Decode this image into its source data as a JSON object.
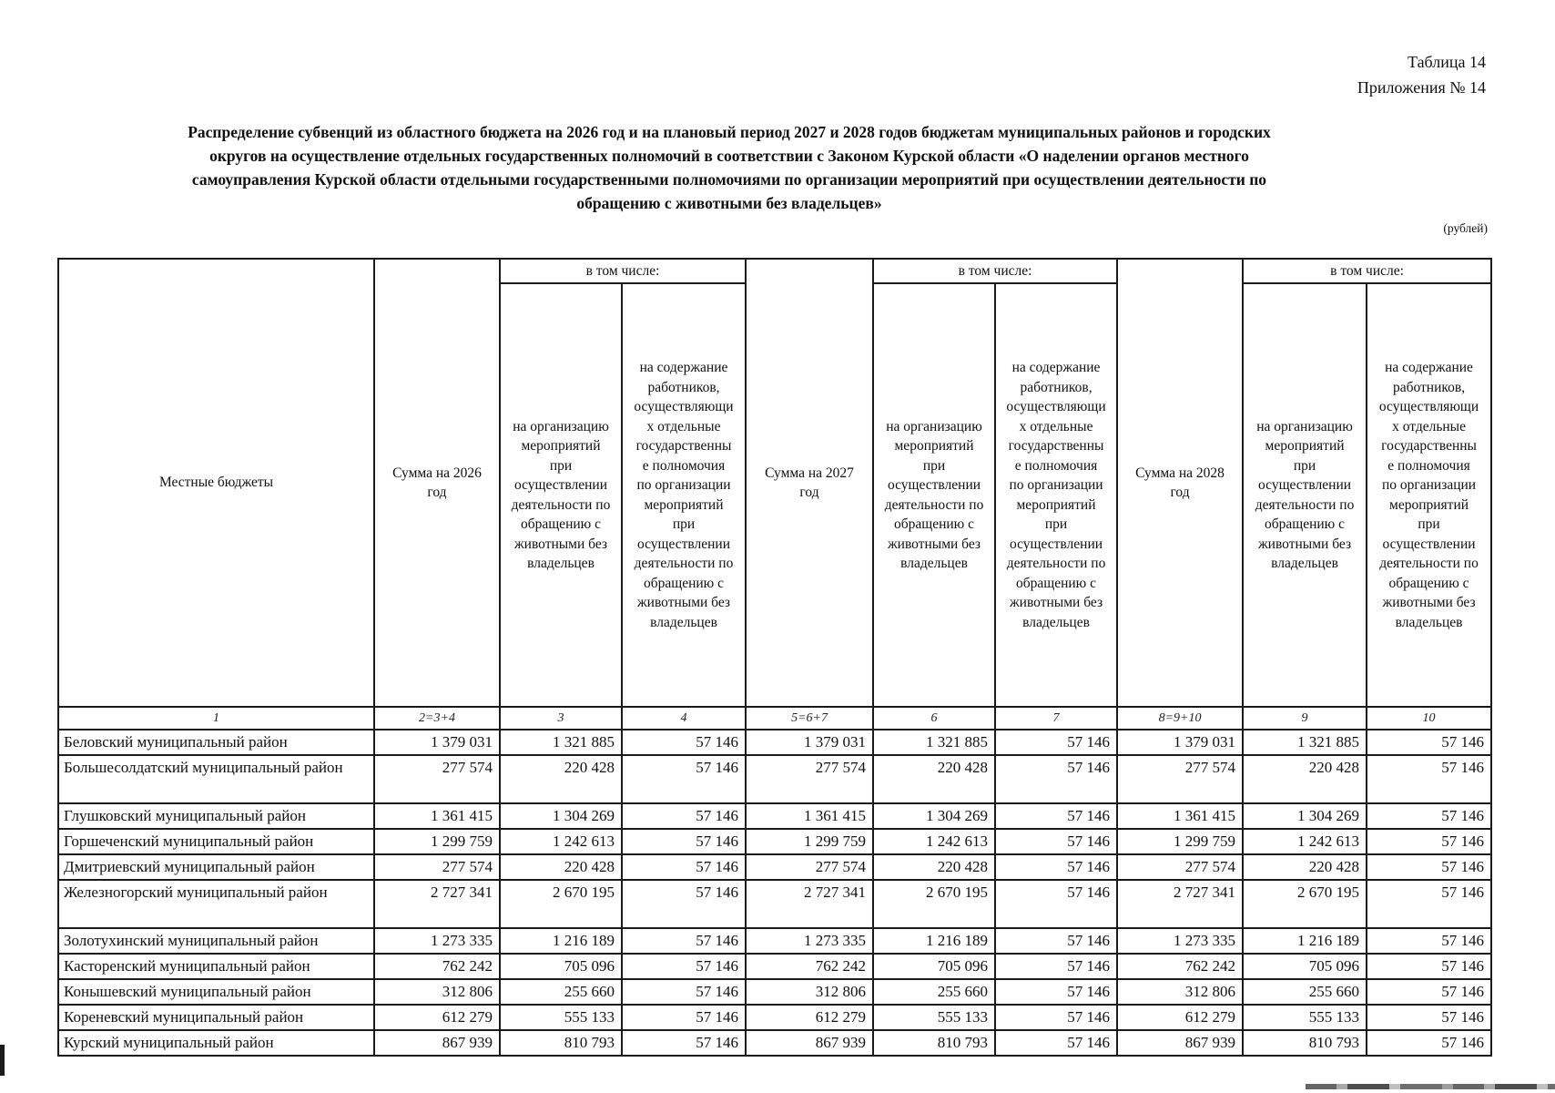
{
  "page": {
    "corner_line1": "Таблица 14",
    "corner_line2": "Приложения № 14",
    "title": "Распределение субвенций из областного бюджета на 2026 год и на плановый период 2027 и 2028 годов бюджетам муниципальных районов и городских\nокругов на осуществление отдельных государственных полномочий в соответствии с Законом Курской области «О наделении органов местного\nсамоуправления Курской области отдельными государственными полномочиями по организации мероприятий при осуществлении деятельности по\nобращению с животными без владельцев»",
    "currency_note": "(рублей)"
  },
  "table": {
    "header": {
      "local_budgets": "Местные бюджеты",
      "sum_2026": "Сумма на 2026\nгод",
      "sum_2027": "Сумма на 2027\nгод",
      "sum_2028": "Сумма на 2028\nгод",
      "including": "в том числе:",
      "org_events": "на организацию\nмероприятий\nпри\nосуществлении\nдеятельности по\nобращению с\nживотными без\nвладельцев",
      "workers": "на содержание\nработников,\nосуществляющи\nх отдельные\nгосударственны\nе полномочия\nпо организации\nмероприятий\nпри\nосуществлении\nдеятельности по\nобращению с\nживотными без\nвладельцев"
    },
    "col_numbers": [
      "1",
      "2=3+4",
      "3",
      "4",
      "5=6+7",
      "6",
      "7",
      "8=9+10",
      "9",
      "10"
    ],
    "rows": [
      {
        "name": "Беловский муниципальный район",
        "tall": false,
        "cells": [
          "1 379 031",
          "1 321 885",
          "57 146",
          "1 379 031",
          "1 321 885",
          "57 146",
          "1 379 031",
          "1 321 885",
          "57 146"
        ]
      },
      {
        "name": "Большесолдатский муниципальный район",
        "tall": true,
        "cells": [
          "277 574",
          "220 428",
          "57 146",
          "277 574",
          "220 428",
          "57 146",
          "277 574",
          "220 428",
          "57 146"
        ]
      },
      {
        "name": "Глушковский муниципальный район",
        "tall": false,
        "cells": [
          "1 361 415",
          "1 304 269",
          "57 146",
          "1 361 415",
          "1 304 269",
          "57 146",
          "1 361 415",
          "1 304 269",
          "57 146"
        ]
      },
      {
        "name": "Горшеченский муниципальный район",
        "tall": false,
        "cells": [
          "1 299 759",
          "1 242 613",
          "57 146",
          "1 299 759",
          "1 242 613",
          "57 146",
          "1 299 759",
          "1 242 613",
          "57 146"
        ]
      },
      {
        "name": "Дмитриевский муниципальный район",
        "tall": false,
        "cells": [
          "277 574",
          "220 428",
          "57 146",
          "277 574",
          "220 428",
          "57 146",
          "277 574",
          "220 428",
          "57 146"
        ]
      },
      {
        "name": "Железногорский муниципальный район",
        "tall": true,
        "cells": [
          "2 727 341",
          "2 670 195",
          "57 146",
          "2 727 341",
          "2 670 195",
          "57 146",
          "2 727 341",
          "2 670 195",
          "57 146"
        ]
      },
      {
        "name": "Золотухинский муниципальный район",
        "tall": false,
        "cells": [
          "1 273 335",
          "1 216 189",
          "57 146",
          "1 273 335",
          "1 216 189",
          "57 146",
          "1 273 335",
          "1 216 189",
          "57 146"
        ]
      },
      {
        "name": "Касторенский муниципальный район",
        "tall": false,
        "cells": [
          "762 242",
          "705 096",
          "57 146",
          "762 242",
          "705 096",
          "57 146",
          "762 242",
          "705 096",
          "57 146"
        ]
      },
      {
        "name": "Конышевский муниципальный район",
        "tall": false,
        "cells": [
          "312 806",
          "255 660",
          "57 146",
          "312 806",
          "255 660",
          "57 146",
          "312 806",
          "255 660",
          "57 146"
        ]
      },
      {
        "name": "Кореневский муниципальный район",
        "tall": false,
        "cells": [
          "612 279",
          "555 133",
          "57 146",
          "612 279",
          "555 133",
          "57 146",
          "612 279",
          "555 133",
          "57 146"
        ]
      },
      {
        "name": "Курский муниципальный район",
        "tall": false,
        "cells": [
          "867 939",
          "810 793",
          "57 146",
          "867 939",
          "810 793",
          "57 146",
          "867 939",
          "810 793",
          "57 146"
        ]
      }
    ]
  }
}
